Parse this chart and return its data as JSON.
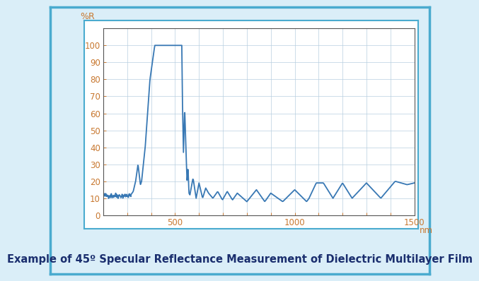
{
  "title": "Example of 45º Specular Reflectance Measurement of Dielectric Multilayer Film",
  "ylabel": "%R",
  "xlabel_suffix": "nm",
  "xlim": [
    200,
    1500
  ],
  "ylim": [
    0,
    110
  ],
  "yticks": [
    0,
    10,
    20,
    30,
    40,
    50,
    60,
    70,
    80,
    90,
    100
  ],
  "xtick_vals": [
    300,
    400,
    500,
    600,
    700,
    800,
    900,
    1000,
    1100,
    1200,
    1300,
    1400,
    1500
  ],
  "xtick_labels_show": [
    500,
    1000,
    1500
  ],
  "line_color": "#3878b4",
  "background_color": "#ffffff",
  "border_color": "#4aabcf",
  "outer_bg": "#daeef8",
  "plot_area_bg": "#f5fafd",
  "title_color": "#1a2e6e",
  "title_fontsize": 10.5,
  "axis_label_color": "#c87830",
  "tick_label_color": "#c87830",
  "grid_color": "#b8cfe0",
  "axis_linewidth": 1.0,
  "line_width": 1.3
}
